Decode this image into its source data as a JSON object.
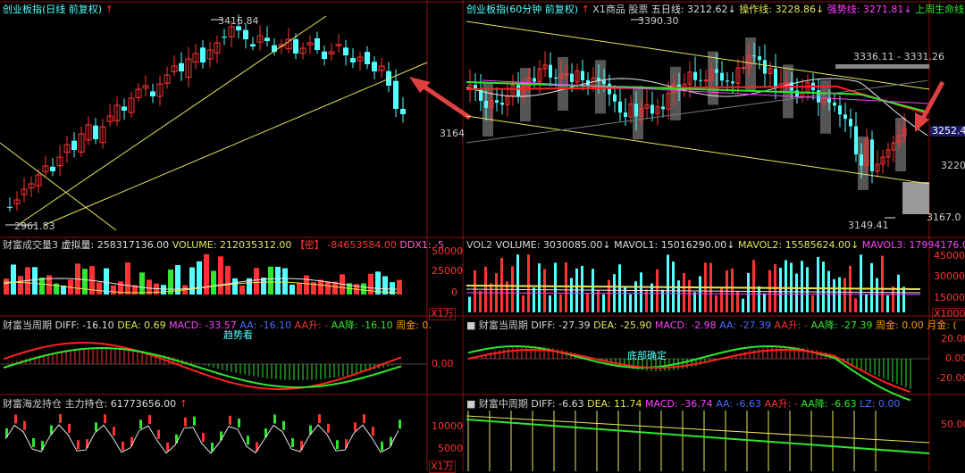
{
  "colors": {
    "up": "#ff3333",
    "down": "#54ffff",
    "bg": "#000000",
    "grid": "#8a1010",
    "yellow": "#e6e65a",
    "white": "#e8e8e8",
    "green": "#2ee62e",
    "magenta": "#ff40ff",
    "blue": "#4a6cff",
    "red": "#ff2020",
    "pink": "#ff66cc",
    "orange": "#ff9900"
  },
  "left": {
    "title": "创业板指(日线 前复权)",
    "arrow_icon": "red-up-arrow",
    "price_high": "3416.84",
    "price_low": "2961.83",
    "price_axis": [
      "3164"
    ],
    "vol": {
      "label": "财富成交量3",
      "xuni": "虚拟量: 258317136.00",
      "volume": "VOLUME: 212035312.00",
      "tag": "【密】",
      "v1": "-84653584.00",
      "ddx": "DDX1: -5",
      "axis": [
        "50000",
        "25000",
        "0"
      ],
      "unit": "X1万"
    },
    "macd": {
      "label": "财富当周期",
      "diff": "DIFF: -16.10",
      "dea": "DEA: 0.69",
      "macd": "MACD: -33.57",
      "aa": "AA: -16.10",
      "aau": "AA升: -",
      "aad": "AA降: -16.10",
      "zj": "周金: 0.",
      "axis": [
        "0.00"
      ],
      "note": "趋势看"
    },
    "hl": {
      "label": "财富海龙持仓",
      "zl": "主力持仓: 61773656.00",
      "axis": [
        "10000",
        "5000"
      ],
      "unit": "X1万"
    }
  },
  "right": {
    "title": "创业板指(60分钟 前复权)",
    "x1": "X1商品 股票",
    "wr": "五日线: 3212.62",
    "czx": "操作线: 3228.86",
    "qsx": "强势线: 3271.81",
    "smx": "上周生命线",
    "price_high": "3390.30",
    "range_label": "3336.11 - 3331.26",
    "low_label": "3149.41",
    "low_right": "3167.0",
    "cur_price": "3252.4",
    "price_axis": [
      "3220"
    ],
    "vol": {
      "label": "VOL2",
      "volume": "VOLUME: 3030085.00",
      "ma1": "MAVOL1: 15016290.00",
      "ma2": "MAVOL2: 15585624.00",
      "ma3": "MAVOL3: 17994176.00",
      "axis": [
        "45000",
        "30000",
        "15000"
      ],
      "unit": "X1000"
    },
    "macd": {
      "label": "财富当周期",
      "diff": "DIFF: -27.39",
      "dea": "DEA: -25.90",
      "macd": "MACD: -2.98",
      "aa": "AA: -27.39",
      "aau": "AA升: -",
      "aad": "AA降: -27.39",
      "zj": "周金: 0.00",
      "yj": "月金: (",
      "axis": [
        "20.00",
        "0.00",
        "-20.00"
      ],
      "note": "底部确定"
    },
    "mid": {
      "label": "财富中周期",
      "diff": "DIFF: -6.63",
      "dea": "DEA: 11.74",
      "macd": "MACD: -36.74",
      "aa": "AA: -6.63",
      "aau": "AA升: -",
      "aad": "AA降: -6.63",
      "lz": "LZ: 0.00",
      "axis": [
        "50.00"
      ]
    }
  }
}
